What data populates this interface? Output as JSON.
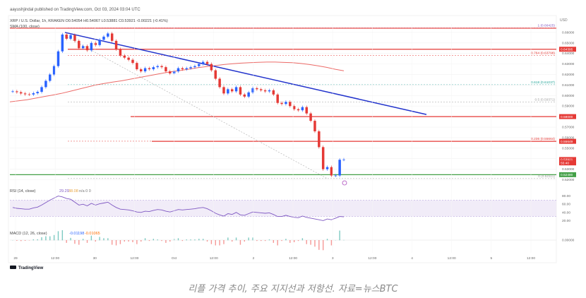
{
  "header": {
    "published_by": "aayushjindal published on TradingView.com, Oct 03, 2024 03:04 UTC",
    "symbol_line": "XRP / U.S. Dollar, 1h, KRAKEN  O0.54054  H0.54067  L0.53881  C0.53921  -0.00221 (-0.41%)",
    "sma_label": "SMA (100, close)"
  },
  "price_axis": {
    "currency": "USD",
    "ticks": [
      "0.66000",
      "0.65000",
      "0.64000",
      "0.63000",
      "0.62000",
      "0.61000",
      "0.60000",
      "0.59000",
      "0.58000",
      "0.57000",
      "0.56000",
      "0.55000",
      "0.54000",
      "0.53000",
      "0.52000"
    ],
    "badges": [
      {
        "text": "0.64395",
        "color": "#e53935"
      },
      {
        "text": "0.58000",
        "color": "#e53935"
      },
      {
        "text": "0.55649",
        "color": "#e53935"
      },
      {
        "text": "0.53921",
        "color": "#e53935"
      },
      {
        "text": "55:40",
        "color": "#e53935"
      },
      {
        "text": "0.52480",
        "color": "#43a047"
      }
    ]
  },
  "fib_labels": [
    {
      "text": "1 (0.66425)",
      "color": "#7e57c2"
    },
    {
      "text": "0.764 (0.63798)",
      "color": "#e53935"
    },
    {
      "text": "0.618 (0.61037)",
      "color": "#26a69a"
    },
    {
      "text": "0.5 (0.59371)",
      "color": "#9e9e9e"
    },
    {
      "text": "0.236 (0.55664)",
      "color": "#e53935"
    },
    {
      "text": "0 (0.52111)",
      "color": "#9e9e9e"
    }
  ],
  "rsi": {
    "label": "RSI (14, close)",
    "value": "29.29",
    "value2": "38.08",
    "extra": "n/a  0  0",
    "ticks": [
      "80.00",
      "60.00",
      "40.00",
      "20.00"
    ]
  },
  "macd": {
    "label": "MACD (12, 26, close)",
    "v1": "-0.01198",
    "v2": "-0.01065",
    "ticks": [
      "0.00000"
    ]
  },
  "time_axis": [
    "29",
    "12:00",
    "30",
    "12:00",
    "Oct",
    "12:00",
    "2",
    "12:00",
    "3",
    "12:00",
    "4",
    "12:00",
    "5",
    "12:00"
  ],
  "footer": {
    "brand": "TradingView"
  },
  "caption": "리플 가격 추이, 주요 지지선과 저항선. 자료=뉴스BTC",
  "chart_data": {
    "type": "candlestick",
    "title": "XRP / U.S. Dollar, 1h, KRAKEN",
    "ylim": [
      0.519,
      0.668
    ],
    "close": [
      0.604,
      0.6032,
      0.602,
      0.6012,
      0.601,
      0.6022,
      0.6035,
      0.608,
      0.614,
      0.62,
      0.628,
      0.642,
      0.658,
      0.654,
      0.6575,
      0.652,
      0.645,
      0.647,
      0.643,
      0.65,
      0.648,
      0.653,
      0.656,
      0.659,
      0.652,
      0.644,
      0.638,
      0.636,
      0.634,
      0.631,
      0.625,
      0.623,
      0.626,
      0.625,
      0.627,
      0.628,
      0.627,
      0.623,
      0.621,
      0.623,
      0.626,
      0.625,
      0.626,
      0.627,
      0.628,
      0.63,
      0.632,
      0.63,
      0.624,
      0.616,
      0.608,
      0.602,
      0.606,
      0.604,
      0.608,
      0.601,
      0.599,
      0.603,
      0.607,
      0.606,
      0.605,
      0.604,
      0.605,
      0.601,
      0.593,
      0.592,
      0.594,
      0.59,
      0.587,
      0.586,
      0.589,
      0.583,
      0.576,
      0.566,
      0.551,
      0.53,
      0.532,
      0.524,
      0.524,
      0.539,
      0.5392
    ],
    "sma100": [
      0.594,
      0.595,
      0.596,
      0.5975,
      0.599,
      0.6005,
      0.602,
      0.604,
      0.606,
      0.608,
      0.61,
      0.6115,
      0.6128,
      0.614,
      0.6155,
      0.617,
      0.6185,
      0.62,
      0.6215,
      0.6228,
      0.624,
      0.6252,
      0.6265,
      0.6275,
      0.6285,
      0.6295,
      0.6302,
      0.6308,
      0.6312,
      0.6316,
      0.6318,
      0.6318,
      0.6315,
      0.6312,
      0.6305,
      0.6295,
      0.6283,
      0.6268,
      0.625,
      0.6235
    ],
    "resistance_trend": {
      "from": 0.66,
      "to": 0.582
    },
    "levels": [
      {
        "name": "resistance",
        "value": 0.664,
        "color": "#e53935"
      },
      {
        "name": "resistance",
        "value": 0.644,
        "color": "#e53935"
      },
      {
        "name": "resistance",
        "value": 0.58,
        "color": "#e53935"
      },
      {
        "name": "resistance",
        "value": 0.5565,
        "color": "#e53935"
      },
      {
        "name": "support",
        "value": 0.5248,
        "color": "#43a047"
      }
    ],
    "fib": [
      {
        "ratio": "1",
        "value": 0.66425
      },
      {
        "ratio": "0.764",
        "value": 0.63798
      },
      {
        "ratio": "0.618",
        "value": 0.61037
      },
      {
        "ratio": "0.5",
        "value": 0.59371
      },
      {
        "ratio": "0.236",
        "value": 0.55664
      },
      {
        "ratio": "0",
        "value": 0.52111
      }
    ],
    "rsi": [
      52,
      50,
      49,
      48,
      48,
      51,
      53,
      58,
      64,
      70,
      75,
      80,
      78,
      74,
      72,
      65,
      58,
      60,
      56,
      62,
      58,
      61,
      63,
      65,
      58,
      52,
      48,
      47,
      46,
      44,
      41,
      40,
      43,
      42,
      45,
      47,
      46,
      43,
      41,
      44,
      47,
      46,
      47,
      48,
      49,
      51,
      52,
      49,
      44,
      38,
      34,
      31,
      37,
      35,
      40,
      34,
      33,
      37,
      41,
      40,
      39,
      38,
      39,
      35,
      30,
      30,
      33,
      30,
      28,
      27,
      31,
      28,
      26,
      24,
      22,
      20,
      24,
      22,
      26,
      30,
      29.29
    ]
  }
}
